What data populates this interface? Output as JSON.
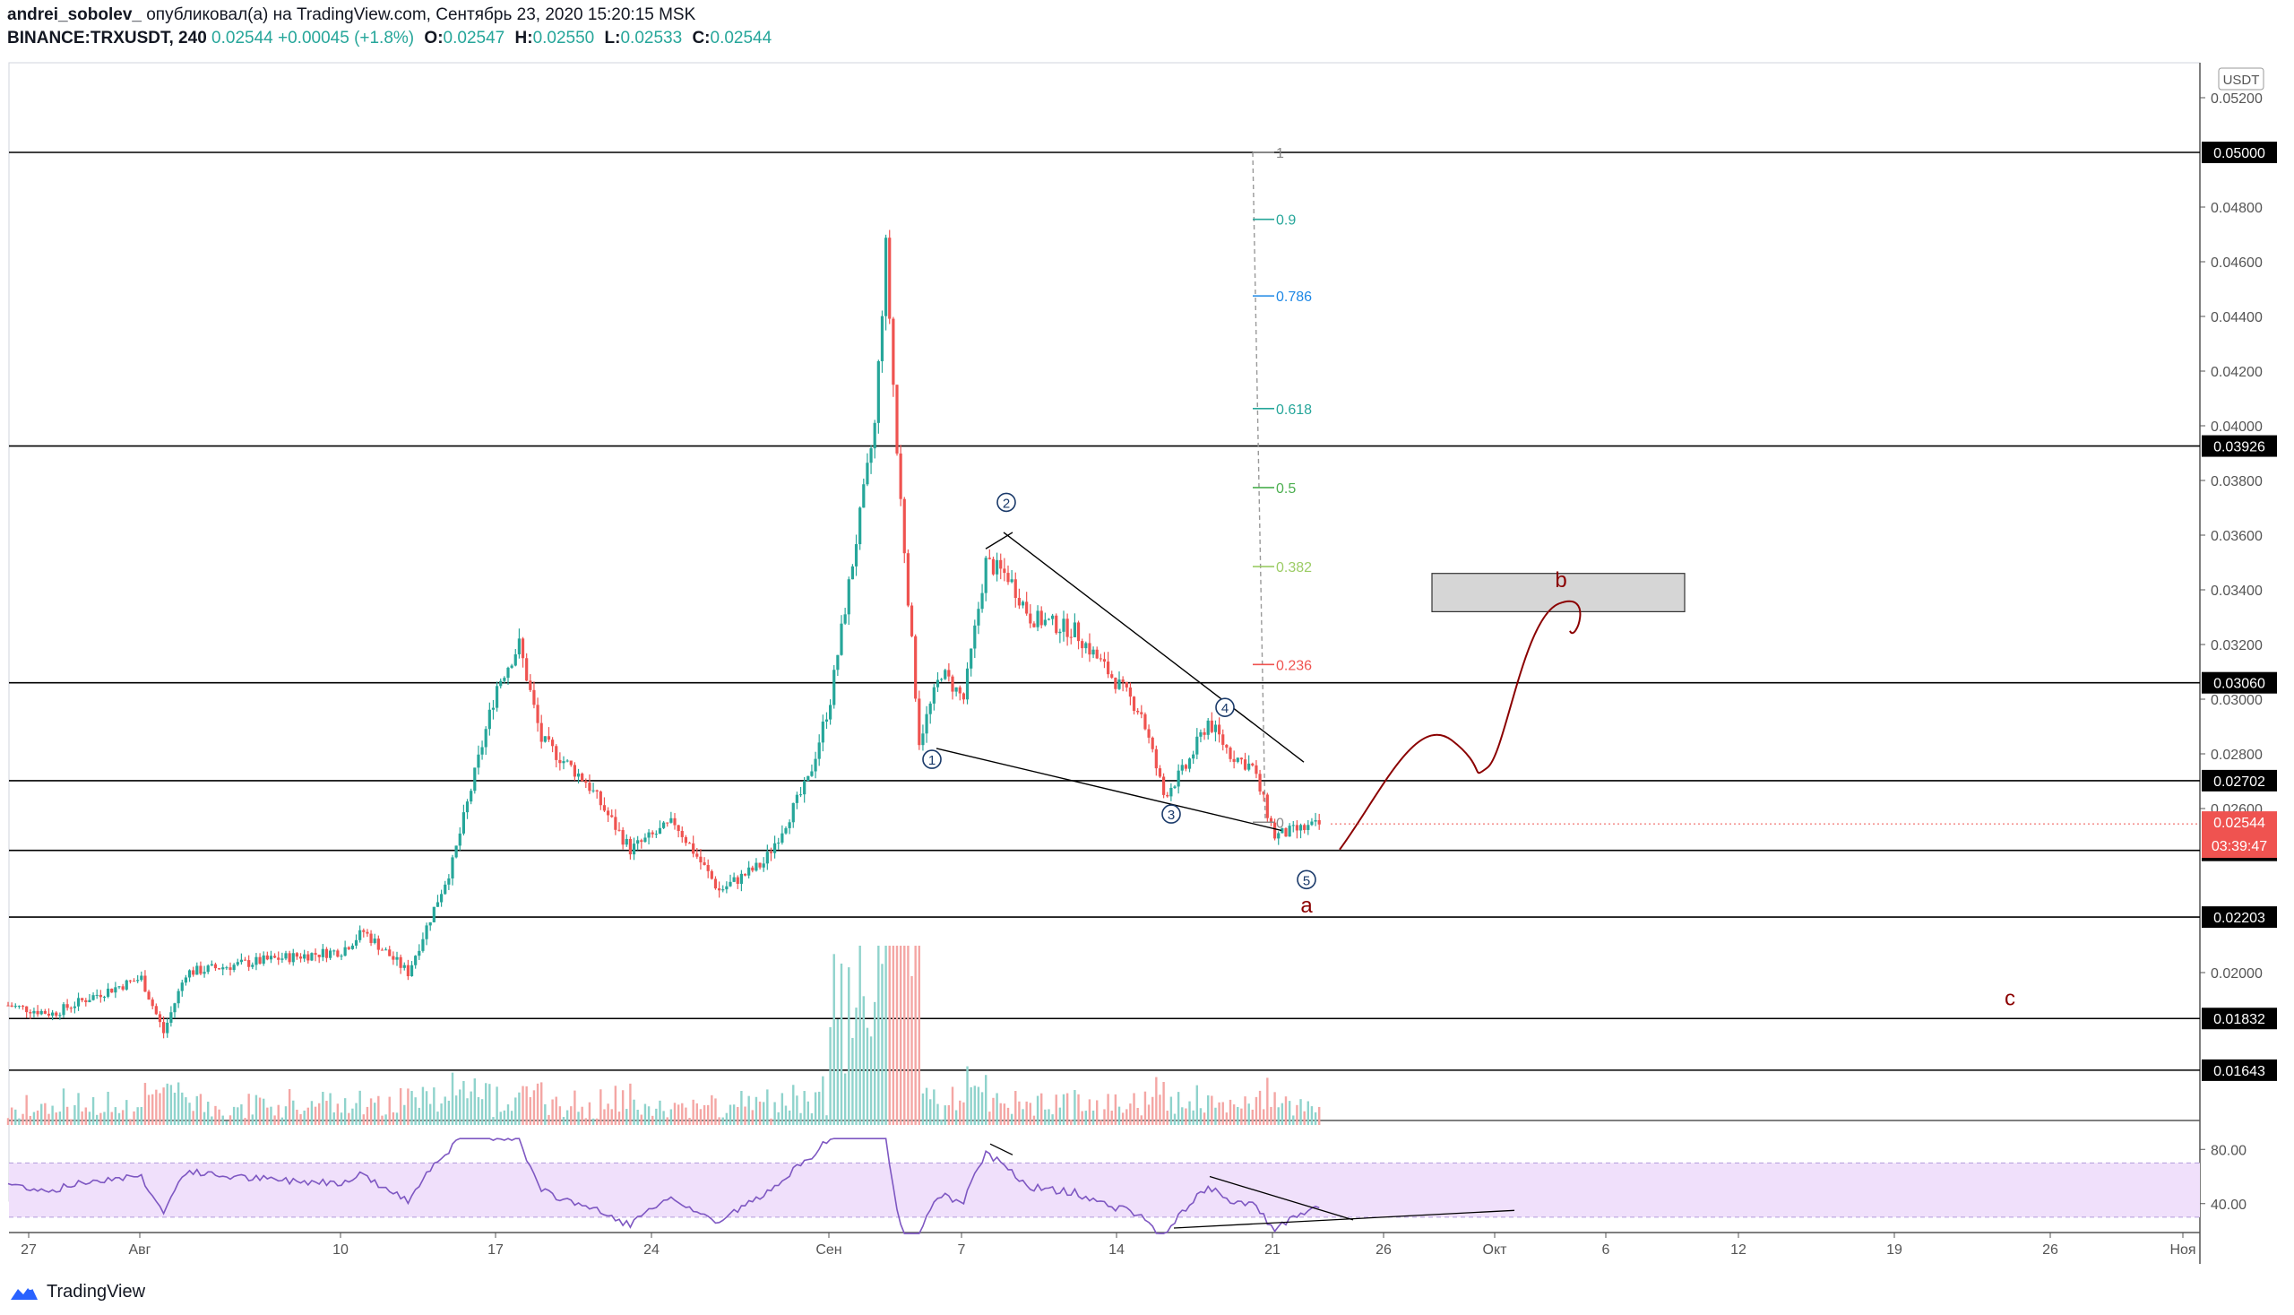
{
  "header": {
    "author": "andrei_sobolev_",
    "published_text": "опубликовал(а) на TradingView.com, Сентябрь 23, 2020 15:20:15 MSK",
    "symbol": "BINANCE:TRXUSDT, 240",
    "last": "0.02544",
    "change": "+0.00045 (+1.8%)",
    "o_label": "O:",
    "o_value": "0.02547",
    "h_label": "H:",
    "h_value": "0.02550",
    "l_label": "L:",
    "l_value": "0.02533",
    "c_label": "C:",
    "c_value": "0.02544"
  },
  "footer": {
    "brand": "TradingView"
  },
  "colors": {
    "up": "#26a69a",
    "down": "#ef5350",
    "rsi": "#7e57c2",
    "rsi_band": "#f0e0fb",
    "wave": "#8b0000",
    "fib_line": "#999999"
  },
  "chart_data": {
    "type": "candlestick",
    "symbol": "BINANCE:TRXUSDT",
    "timeframe": "240",
    "currency": "USDT",
    "price_scale": {
      "ylim": [
        0.0168,
        0.0525
      ],
      "ticks": [
        "0.05200",
        "0.04800",
        "0.04600",
        "0.04400",
        "0.04200",
        "0.04000",
        "0.03800",
        "0.03600",
        "0.03400",
        "0.03200",
        "0.03000",
        "0.02800",
        "0.02600",
        "0.02000"
      ]
    },
    "x_axis": {
      "ticks": [
        "27",
        "Авг",
        "10",
        "17",
        "24",
        "Сен",
        "7",
        "14",
        "21",
        "26",
        "Окт",
        "6",
        "12",
        "19",
        "26",
        "Ноя"
      ]
    },
    "horizontal_levels": [
      "0.05000",
      "0.03926",
      "0.03060",
      "0.02702",
      "0.02447",
      "0.02203",
      "0.01832",
      "0.01643"
    ],
    "current_price": {
      "value": "0.02544",
      "countdown": "03:39:47"
    },
    "price_path": [
      [
        "Jul 26",
        0.0188
      ],
      [
        "Jul 28",
        0.0185
      ],
      [
        "Jul 30",
        0.0192
      ],
      [
        "Aug 1",
        0.0198
      ],
      [
        "Aug 2",
        0.0178
      ],
      [
        "Aug 3",
        0.02
      ],
      [
        "Aug 7",
        0.0205
      ],
      [
        "Aug 10",
        0.0208
      ],
      [
        "Aug 11",
        0.0215
      ],
      [
        "Aug 13",
        0.02
      ],
      [
        "Aug 15",
        0.024
      ],
      [
        "Aug 17",
        0.0305
      ],
      [
        "Aug 18",
        0.032
      ],
      [
        "Aug 19",
        0.0285
      ],
      [
        "Aug 21",
        0.027
      ],
      [
        "Aug 23",
        0.0245
      ],
      [
        "Aug 25",
        0.0255
      ],
      [
        "Aug 27",
        0.023
      ],
      [
        "Aug 29",
        0.024
      ],
      [
        "Aug 31",
        0.027
      ],
      [
        "Sep 1",
        0.03
      ],
      [
        "Sep 2",
        0.035
      ],
      [
        "Sep 3",
        0.04
      ],
      [
        "Sep 3 12h",
        0.0465
      ],
      [
        "Sep 4",
        0.039
      ],
      [
        "Sep 5",
        0.0285
      ],
      [
        "Sep 6",
        0.031
      ],
      [
        "Sep 7",
        0.03
      ],
      [
        "Sep 8",
        0.035
      ],
      [
        "Sep 9",
        0.0345
      ],
      [
        "Sep 10",
        0.033
      ],
      [
        "Sep 12",
        0.0325
      ],
      [
        "Sep 14",
        0.0305
      ],
      [
        "Sep 15",
        0.0295
      ],
      [
        "Sep 16",
        0.0265
      ],
      [
        "Sep 17",
        0.0275
      ],
      [
        "Sep 18",
        0.0292
      ],
      [
        "Sep 19",
        0.028
      ],
      [
        "Sep 20",
        0.0275
      ],
      [
        "Sep 21",
        0.025
      ],
      [
        "Sep 23",
        0.0254
      ]
    ],
    "fibonacci": [
      {
        "level": "1",
        "price": 0.05
      },
      {
        "level": "0.9",
        "price": 0.04755
      },
      {
        "level": "0.786",
        "price": 0.04475
      },
      {
        "level": "0.618",
        "price": 0.04063
      },
      {
        "level": "0.5",
        "price": 0.03774
      },
      {
        "level": "0.382",
        "price": 0.03485
      },
      {
        "level": "0.236",
        "price": 0.03127
      },
      {
        "level": "0",
        "price": 0.0255
      }
    ],
    "wave_labels": [
      "1",
      "2",
      "3",
      "4",
      "5"
    ],
    "correction_labels": [
      "a",
      "b",
      "c"
    ],
    "rsi": {
      "ticks": [
        "80.00",
        "40.00"
      ],
      "band": [
        30,
        70
      ]
    }
  }
}
